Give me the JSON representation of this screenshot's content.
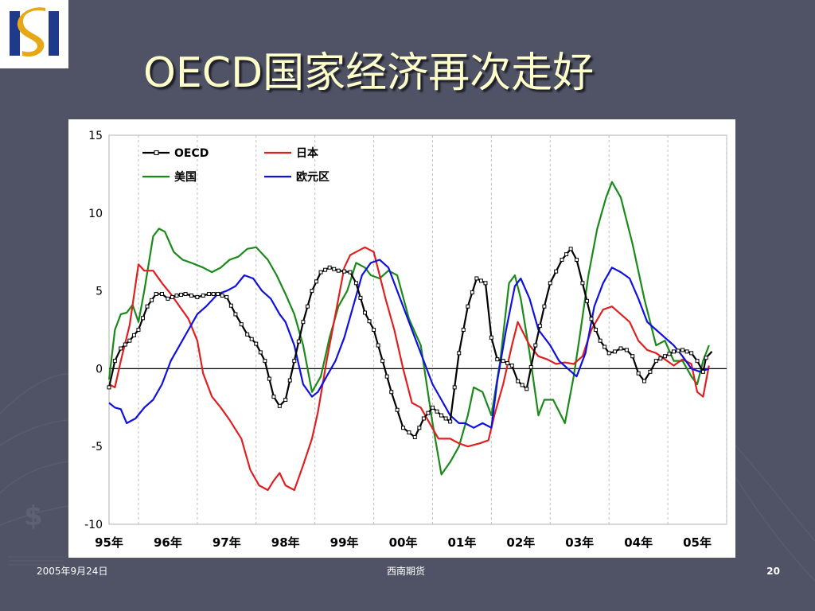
{
  "slide": {
    "title": "OECD国家经济再次走好",
    "footer_date": "2005年9月24日",
    "footer_company": "西南期货",
    "page_number": "20",
    "background_color": "#505366",
    "title_color": "#ffffcc"
  },
  "logo": {
    "icon": "company-s-logo-icon",
    "colors": [
      "#1f3a8a",
      "#e6a817"
    ]
  },
  "chart_data": {
    "type": "line",
    "title": "",
    "xlabel": "",
    "ylabel": "",
    "ylim": [
      -10,
      15
    ],
    "xlim": [
      1995.0,
      2005.5
    ],
    "y_ticks": [
      "15",
      "10",
      "5",
      "0",
      "-5",
      "-10"
    ],
    "x_tick_labels": [
      "95年",
      "96年",
      "97年",
      "98年",
      "99年",
      "00年",
      "01年",
      "02年",
      "03年",
      "04年",
      "05年"
    ],
    "grid": "vertical dashed",
    "legend_position": "top-left, inside",
    "zero_line": true,
    "series": [
      {
        "name": "OECD",
        "color": "#000000",
        "marker": "square-open",
        "x": [
          1995.0,
          1995.1,
          1995.2,
          1995.35,
          1995.5,
          1995.65,
          1995.8,
          1995.9,
          1996.0,
          1996.15,
          1996.3,
          1996.5,
          1996.7,
          1996.85,
          1997.0,
          1997.15,
          1997.35,
          1997.5,
          1997.65,
          1997.8,
          1997.9,
          1998.0,
          1998.15,
          1998.3,
          1998.45,
          1998.6,
          1998.75,
          1998.9,
          1999.1,
          1999.2,
          1999.35,
          1999.5,
          1999.65,
          1999.8,
          2000.0,
          2000.2,
          2000.35,
          2000.5,
          2000.65,
          2000.8,
          2000.95,
          2001.1,
          2001.25,
          2001.4,
          2001.5,
          2001.6,
          2001.7,
          2001.85,
          2001.95,
          2002.1,
          2002.25,
          2002.4,
          2002.5,
          2002.7,
          2002.85,
          2002.95,
          2003.05,
          2003.2,
          2003.35,
          2003.5,
          2003.6,
          2003.7,
          2003.8,
          2003.9,
          2004.0,
          2004.1,
          2004.2,
          2004.3,
          2004.45,
          2004.6,
          2004.75,
          2004.9,
          2005.0,
          2005.1,
          2005.15,
          2005.25
        ],
        "y": [
          -1.2,
          0.5,
          1.3,
          1.8,
          2.5,
          4.0,
          4.8,
          4.8,
          4.5,
          4.7,
          4.8,
          4.6,
          4.8,
          4.8,
          4.6,
          3.5,
          2.2,
          1.6,
          0.5,
          -1.8,
          -2.4,
          -2.0,
          0.5,
          3.0,
          5.0,
          6.2,
          6.5,
          6.3,
          6.2,
          5.5,
          3.6,
          2.5,
          0.5,
          -1.5,
          -3.8,
          -4.4,
          -3.2,
          -2.5,
          -3.0,
          -3.4,
          1.0,
          4.0,
          5.8,
          5.5,
          2.0,
          0.6,
          0.5,
          0.2,
          -0.8,
          -1.3,
          1.5,
          4.0,
          5.5,
          7.0,
          7.7,
          7.0,
          5.5,
          3.2,
          1.8,
          1.0,
          1.1,
          1.3,
          1.2,
          0.8,
          -0.3,
          -0.8,
          -0.2,
          0.5,
          0.8,
          1.1,
          1.2,
          1.0,
          0.5,
          -0.2,
          0.7,
          1.1
        ]
      },
      {
        "name": "日本",
        "color": "#e02020",
        "x": [
          1995.0,
          1995.1,
          1995.2,
          1995.35,
          1995.5,
          1995.6,
          1995.75,
          1995.9,
          1996.05,
          1996.2,
          1996.35,
          1996.5,
          1996.6,
          1996.75,
          1996.9,
          1997.05,
          1997.25,
          1997.4,
          1997.55,
          1997.7,
          1997.8,
          1997.9,
          1998.0,
          1998.15,
          1998.3,
          1998.45,
          1998.55,
          1998.7,
          1998.85,
          1999.0,
          1999.1,
          1999.2,
          1999.35,
          1999.5,
          1999.7,
          1999.85,
          2000.0,
          2000.15,
          2000.3,
          2000.45,
          2000.6,
          2000.8,
          2000.95,
          2001.1,
          2001.3,
          2001.45,
          2001.55,
          2001.7,
          2001.85,
          2001.95,
          2002.15,
          2002.3,
          2002.45,
          2002.6,
          2002.75,
          2002.9,
          2003.05,
          2003.2,
          2003.4,
          2003.55,
          2003.7,
          2003.85,
          2004.0,
          2004.15,
          2004.3,
          2004.45,
          2004.6,
          2004.75,
          2004.9,
          2005.0,
          2005.1,
          2005.2
        ],
        "y": [
          -1.0,
          -1.2,
          0.5,
          2.8,
          6.7,
          6.3,
          6.3,
          5.5,
          4.8,
          4.0,
          3.2,
          1.8,
          -0.3,
          -1.8,
          -2.5,
          -3.3,
          -4.5,
          -6.5,
          -7.5,
          -7.8,
          -7.2,
          -6.7,
          -7.5,
          -7.8,
          -6.2,
          -4.5,
          -2.8,
          0.5,
          3.5,
          6.5,
          7.3,
          7.5,
          7.8,
          7.5,
          4.5,
          2.5,
          0.0,
          -2.2,
          -2.5,
          -3.5,
          -4.5,
          -4.5,
          -4.8,
          -5.0,
          -4.8,
          -4.6,
          -3.0,
          -1.0,
          1.5,
          3.0,
          1.5,
          0.8,
          0.6,
          0.3,
          0.4,
          0.3,
          0.8,
          2.5,
          3.8,
          4.0,
          3.5,
          3.0,
          1.8,
          1.2,
          1.0,
          0.6,
          0.2,
          0.6,
          0.3,
          -1.5,
          -1.8,
          0.2
        ]
      },
      {
        "name": "美国",
        "color": "#1a8a1a",
        "x": [
          1995.0,
          1995.1,
          1995.2,
          1995.3,
          1995.4,
          1995.5,
          1995.6,
          1995.75,
          1995.85,
          1995.95,
          1996.1,
          1996.25,
          1996.4,
          1996.6,
          1996.75,
          1996.9,
          1997.05,
          1997.2,
          1997.35,
          1997.5,
          1997.7,
          1997.85,
          1998.0,
          1998.15,
          1998.3,
          1998.45,
          1998.6,
          1998.75,
          1998.9,
          1999.05,
          1999.2,
          1999.35,
          1999.45,
          1999.6,
          1999.75,
          1999.9,
          2000.1,
          2000.3,
          2000.5,
          2000.65,
          2000.8,
          2000.95,
          2001.1,
          2001.2,
          2001.35,
          2001.5,
          2001.65,
          2001.8,
          2001.9,
          2002.0,
          2002.15,
          2002.3,
          2002.4,
          2002.55,
          2002.75,
          2002.9,
          2003.0,
          2003.15,
          2003.3,
          2003.45,
          2003.55,
          2003.7,
          2003.9,
          2004.1,
          2004.3,
          2004.45,
          2004.6,
          2004.75,
          2004.9,
          2005.0,
          2005.1,
          2005.2
        ],
        "y": [
          -0.7,
          2.5,
          3.5,
          3.6,
          4.1,
          3.0,
          5.0,
          8.5,
          9.0,
          8.8,
          7.5,
          7.0,
          6.8,
          6.5,
          6.2,
          6.5,
          7.0,
          7.2,
          7.7,
          7.8,
          7.0,
          6.0,
          4.8,
          3.5,
          1.5,
          -1.5,
          -0.5,
          2.0,
          4.0,
          5.0,
          6.8,
          6.5,
          6.0,
          5.8,
          6.3,
          6.0,
          3.2,
          1.5,
          -3.5,
          -6.8,
          -6.0,
          -5.0,
          -3.0,
          -1.2,
          -1.5,
          -3.0,
          0.5,
          5.5,
          6.0,
          4.5,
          1.0,
          -3.0,
          -2.0,
          -2.0,
          -3.5,
          -0.5,
          2.0,
          6.0,
          9.0,
          11.0,
          12.0,
          11.0,
          8.0,
          4.5,
          1.5,
          1.8,
          0.5,
          0.5,
          -0.5,
          -1.0,
          0.5,
          1.5
        ]
      },
      {
        "name": "欧元区",
        "color": "#1010e0",
        "x": [
          1995.0,
          1995.1,
          1995.2,
          1995.3,
          1995.45,
          1995.6,
          1995.75,
          1995.9,
          1996.05,
          1996.2,
          1996.35,
          1996.5,
          1996.65,
          1996.85,
          1997.0,
          1997.15,
          1997.3,
          1997.45,
          1997.6,
          1997.75,
          1997.9,
          1998.0,
          1998.15,
          1998.3,
          1998.45,
          1998.55,
          1998.7,
          1998.85,
          1999.0,
          1999.15,
          1999.3,
          1999.45,
          1999.6,
          1999.75,
          1999.9,
          2000.05,
          2000.2,
          2000.35,
          2000.5,
          2000.65,
          2000.8,
          2000.95,
          2001.05,
          2001.2,
          2001.35,
          2001.5,
          2001.6,
          2001.75,
          2001.9,
          2002.0,
          2002.15,
          2002.3,
          2002.5,
          2002.65,
          2002.8,
          2002.95,
          2003.1,
          2003.25,
          2003.4,
          2003.55,
          2003.7,
          2003.85,
          2004.0,
          2004.15,
          2004.3,
          2004.45,
          2004.6,
          2004.75,
          2004.9,
          2005.05,
          2005.2
        ],
        "y": [
          -2.2,
          -2.5,
          -2.6,
          -3.5,
          -3.2,
          -2.5,
          -2.0,
          -1.0,
          0.5,
          1.5,
          2.5,
          3.5,
          4.0,
          4.8,
          5.0,
          5.3,
          6.0,
          5.8,
          5.0,
          4.5,
          3.5,
          3.0,
          1.5,
          -1.0,
          -1.8,
          -1.5,
          -0.5,
          0.5,
          2.0,
          4.0,
          6.0,
          6.8,
          7.0,
          6.5,
          5.0,
          3.5,
          2.0,
          0.5,
          -1.0,
          -2.0,
          -3.0,
          -3.5,
          -3.5,
          -3.8,
          -3.5,
          -3.8,
          -0.8,
          2.5,
          5.3,
          5.8,
          4.5,
          2.5,
          1.5,
          0.5,
          0.0,
          -0.5,
          1.0,
          4.0,
          5.5,
          6.5,
          6.2,
          5.8,
          4.5,
          3.0,
          2.5,
          2.0,
          1.5,
          0.8,
          0.0,
          -0.2,
          0.0
        ]
      }
    ]
  }
}
